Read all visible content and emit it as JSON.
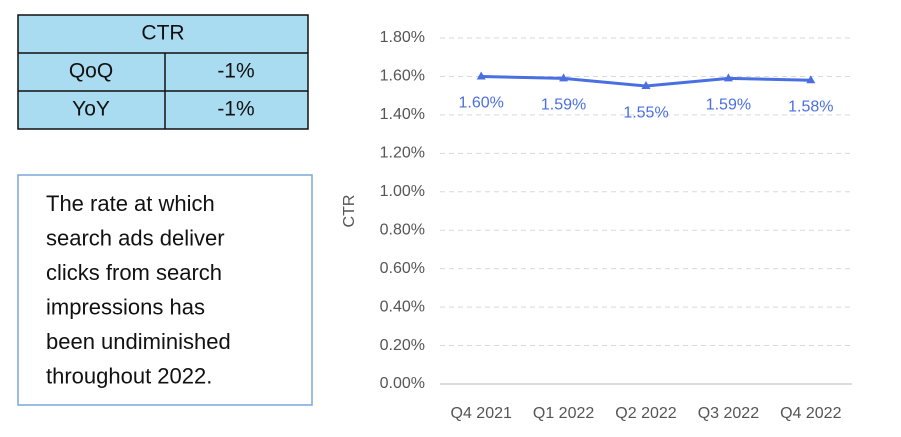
{
  "table": {
    "title": "CTR",
    "rows": [
      [
        "QoQ",
        "-1%"
      ],
      [
        "YoY",
        "-1%"
      ]
    ]
  },
  "note": [
    "The rate at which",
    "search ads deliver",
    "clicks from search",
    "impressions has",
    "been undiminished",
    "throughout 2022."
  ],
  "chart_data": {
    "type": "line",
    "ylabel": "CTR",
    "categories": [
      "Q4 2021",
      "Q1 2022",
      "Q2 2022",
      "Q3 2022",
      "Q4 2022"
    ],
    "values": [
      1.6,
      1.59,
      1.55,
      1.59,
      1.58
    ],
    "value_labels": [
      "1.60%",
      "1.59%",
      "1.55%",
      "1.59%",
      "1.58%"
    ],
    "color": "#4a6fe0",
    "ylim": [
      0,
      1.8
    ],
    "yticks": [
      {
        "value": 0,
        "label": "0.00%"
      },
      {
        "value": 0.2,
        "label": "0.20%"
      },
      {
        "value": 0.4,
        "label": "0.40%"
      },
      {
        "value": 0.6,
        "label": "0.60%"
      },
      {
        "value": 0.8,
        "label": "0.80%"
      },
      {
        "value": 1.0,
        "label": "1.00%"
      },
      {
        "value": 1.2,
        "label": "1.20%"
      },
      {
        "value": 1.4,
        "label": "1.40%"
      },
      {
        "value": 1.6,
        "label": "1.60%"
      },
      {
        "value": 1.8,
        "label": "1.80%"
      }
    ],
    "grid": true
  }
}
